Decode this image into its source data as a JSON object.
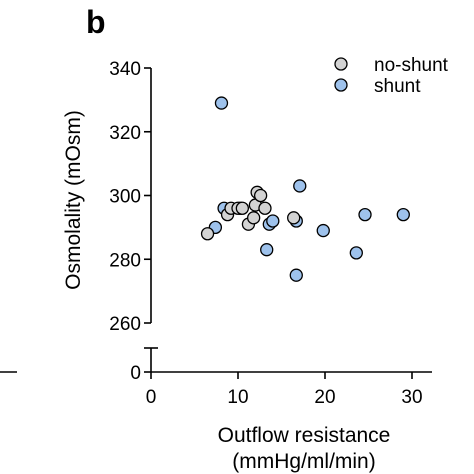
{
  "chart_data": {
    "type": "scatter",
    "panel_label": "b",
    "xlabel_line1": "Outflow resistance",
    "xlabel_line2": "(mmHg/ml/min)",
    "ylabel": "Osmolality (mOsm)",
    "xlim": [
      0,
      30
    ],
    "ylim_upper": [
      260,
      340
    ],
    "ylim_lower": [
      0,
      0
    ],
    "x_ticks": [
      0,
      10,
      20,
      30
    ],
    "y_ticks": [
      260,
      280,
      300,
      320,
      340
    ],
    "y_ticks_lower": [
      0
    ],
    "axis_break": true,
    "grid": false,
    "legend_position": "top-right",
    "series": [
      {
        "name": "no-shunt",
        "color": "#d3d3d3",
        "points": [
          {
            "x": 6.5,
            "y": 288
          },
          {
            "x": 8.8,
            "y": 294
          },
          {
            "x": 9.2,
            "y": 296
          },
          {
            "x": 10.0,
            "y": 296
          },
          {
            "x": 10.5,
            "y": 296
          },
          {
            "x": 11.2,
            "y": 291
          },
          {
            "x": 11.8,
            "y": 293
          },
          {
            "x": 12.0,
            "y": 297
          },
          {
            "x": 12.2,
            "y": 301
          },
          {
            "x": 12.6,
            "y": 300
          },
          {
            "x": 13.1,
            "y": 296
          },
          {
            "x": 16.4,
            "y": 293
          }
        ]
      },
      {
        "name": "shunt",
        "color": "#9ec2ec",
        "points": [
          {
            "x": 7.4,
            "y": 290
          },
          {
            "x": 8.1,
            "y": 329
          },
          {
            "x": 8.4,
            "y": 296
          },
          {
            "x": 10.3,
            "y": 296
          },
          {
            "x": 13.3,
            "y": 283
          },
          {
            "x": 13.6,
            "y": 291
          },
          {
            "x": 14.0,
            "y": 292
          },
          {
            "x": 16.7,
            "y": 292
          },
          {
            "x": 16.7,
            "y": 275
          },
          {
            "x": 17.1,
            "y": 303
          },
          {
            "x": 19.8,
            "y": 289
          },
          {
            "x": 23.6,
            "y": 282
          },
          {
            "x": 24.6,
            "y": 294
          },
          {
            "x": 29.0,
            "y": 294
          }
        ]
      }
    ]
  }
}
